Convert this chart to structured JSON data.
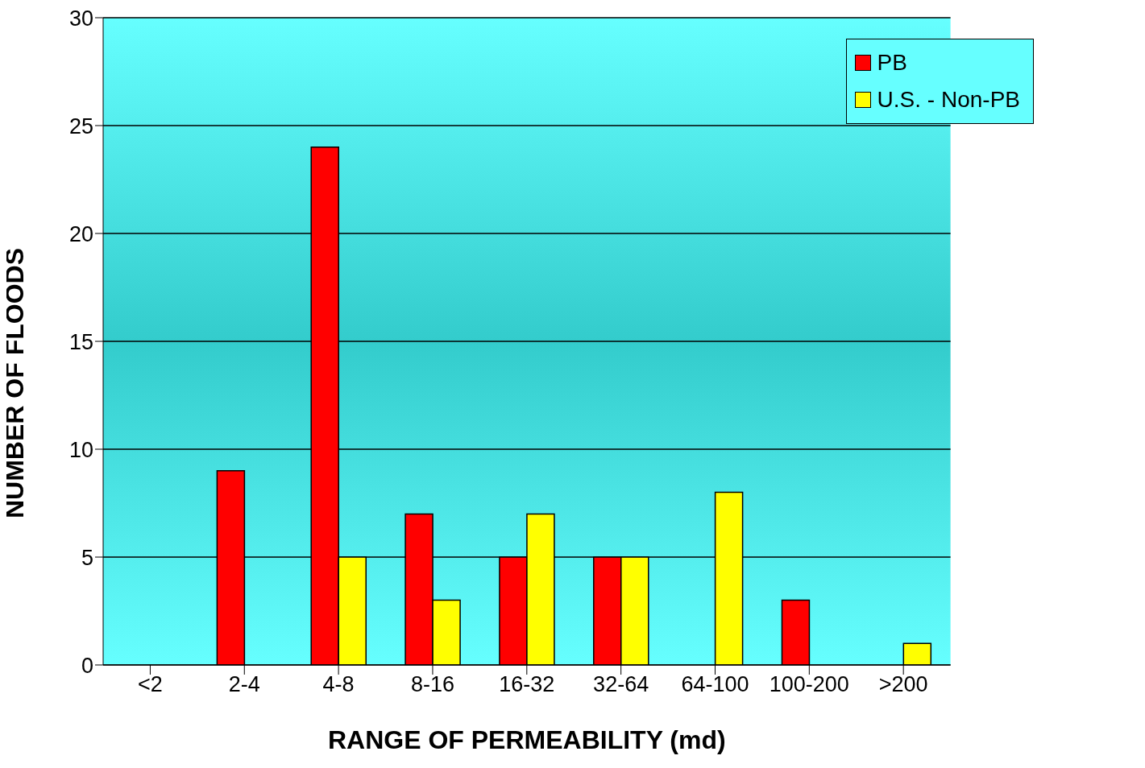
{
  "chart_data": {
    "type": "bar",
    "xlabel": "RANGE OF PERMEABILITY (md)",
    "ylabel": "NUMBER OF FLOODS",
    "categories": [
      "<2",
      "2-4",
      "4-8",
      "8-16",
      "16-32",
      "32-64",
      "64-100",
      "100-200",
      ">200"
    ],
    "series": [
      {
        "name": "PB",
        "color": "#ff0000",
        "values": [
          0,
          9,
          24,
          7,
          5,
          5,
          0,
          3,
          0
        ]
      },
      {
        "name": "U.S. - Non-PB",
        "color": "#ffff00",
        "values": [
          0,
          0,
          5,
          3,
          7,
          5,
          8,
          0,
          1
        ]
      }
    ],
    "ylim": [
      0,
      30
    ],
    "yticks": [
      0,
      5,
      10,
      15,
      20,
      25,
      30
    ],
    "grid": "y",
    "legend": "top right"
  }
}
